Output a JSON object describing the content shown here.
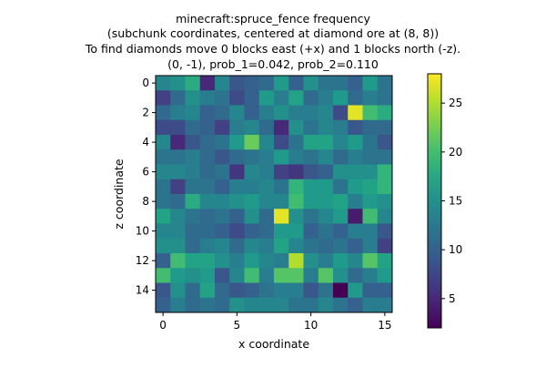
{
  "chart_data": {
    "type": "heatmap",
    "title_lines": [
      "minecraft:spruce_fence frequency",
      "(subchunk coordinates, centered at diamond ore at (8, 8))",
      "To find diamonds move 0 blocks east (+x) and 1 blocks north (-z).",
      "(0, -1), prob_1=0.042, prob_2=0.110"
    ],
    "xlabel": "x coordinate",
    "ylabel": "z coordinate",
    "x_ticks": [
      0,
      5,
      10,
      15
    ],
    "y_ticks": [
      0,
      2,
      4,
      6,
      8,
      10,
      12,
      14
    ],
    "colorbar_ticks": [
      5,
      10,
      15,
      20,
      25
    ],
    "colormap": "viridis",
    "vmin": 2,
    "vmax": 28,
    "values": [
      [
        14,
        15,
        18,
        5,
        14,
        9,
        10,
        11,
        16,
        10,
        15,
        12,
        12,
        10,
        16,
        12
      ],
      [
        7,
        11,
        15,
        13,
        12,
        8,
        10,
        16,
        13,
        17,
        11,
        13,
        16,
        11,
        13,
        12
      ],
      [
        11,
        13,
        14,
        10,
        11,
        14,
        10,
        13,
        15,
        13,
        13,
        14,
        8,
        27,
        20,
        18
      ],
      [
        8,
        8,
        11,
        10,
        7,
        13,
        14,
        11,
        5,
        15,
        12,
        14,
        13,
        9,
        11,
        11
      ],
      [
        14,
        5,
        9,
        11,
        12,
        16,
        22,
        14,
        8,
        12,
        17,
        17,
        14,
        16,
        12,
        9
      ],
      [
        12,
        12,
        13,
        11,
        9,
        11,
        12,
        13,
        16,
        13,
        12,
        14,
        11,
        13,
        12,
        12
      ],
      [
        14,
        14,
        13,
        11,
        12,
        6,
        14,
        13,
        7,
        6,
        9,
        10,
        15,
        15,
        15,
        19
      ],
      [
        12,
        7,
        12,
        12,
        10,
        13,
        13,
        14,
        12,
        19,
        16,
        16,
        12,
        16,
        17,
        19
      ],
      [
        12,
        11,
        18,
        14,
        14,
        15,
        16,
        14,
        14,
        20,
        16,
        16,
        17,
        13,
        16,
        15
      ],
      [
        17,
        14,
        12,
        11,
        12,
        10,
        15,
        11,
        27,
        15,
        12,
        14,
        16,
        4,
        20,
        14
      ],
      [
        14,
        14,
        11,
        11,
        10,
        8,
        10,
        11,
        16,
        16,
        10,
        12,
        10,
        13,
        13,
        9
      ],
      [
        15,
        15,
        11,
        13,
        14,
        11,
        14,
        13,
        17,
        14,
        12,
        11,
        12,
        10,
        13,
        7
      ],
      [
        10,
        20,
        17,
        17,
        15,
        13,
        16,
        14,
        13,
        25,
        15,
        13,
        16,
        14,
        21,
        17
      ],
      [
        20,
        16,
        15,
        16,
        9,
        14,
        20,
        13,
        21,
        21,
        13,
        21,
        15,
        11,
        13,
        16
      ],
      [
        9,
        15,
        11,
        17,
        11,
        9,
        10,
        12,
        13,
        13,
        9,
        12,
        2,
        16,
        10,
        10
      ],
      [
        10,
        13,
        11,
        12,
        11,
        15,
        14,
        14,
        14,
        12,
        12,
        14,
        12,
        10,
        13,
        13
      ]
    ]
  }
}
